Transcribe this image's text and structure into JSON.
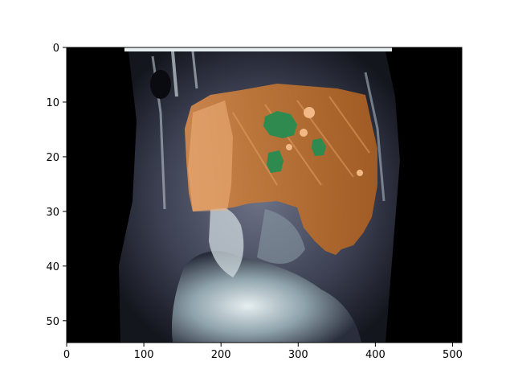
{
  "figure": {
    "background": "#ffffff",
    "image": {
      "description_tag": "ct-scan-slice-with-segmentation-overlay",
      "colormap": "bone",
      "overlay_colors": {
        "liver": "#b8682c",
        "liver_highlight": "#f0b27c",
        "lesion": "#2e8a4e"
      }
    },
    "x_axis": {
      "ticks": [
        {
          "value": 0,
          "label": "0"
        },
        {
          "value": 100,
          "label": "100"
        },
        {
          "value": 200,
          "label": "200"
        },
        {
          "value": 300,
          "label": "300"
        },
        {
          "value": 400,
          "label": "400"
        },
        {
          "value": 500,
          "label": "500"
        }
      ],
      "range": [
        0,
        512
      ]
    },
    "y_axis": {
      "ticks": [
        {
          "value": 0,
          "label": "0"
        },
        {
          "value": 10,
          "label": "10"
        },
        {
          "value": 20,
          "label": "20"
        },
        {
          "value": 30,
          "label": "30"
        },
        {
          "value": 40,
          "label": "40"
        },
        {
          "value": 50,
          "label": "50"
        }
      ],
      "range": [
        0,
        54
      ],
      "inverted": true
    }
  }
}
